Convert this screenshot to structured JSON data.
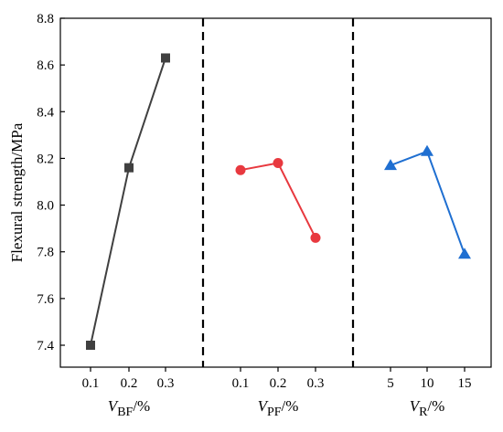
{
  "chart_data": {
    "type": "line",
    "ylabel": "Flexural strength/MPa",
    "ylim": [
      7.35,
      8.8
    ],
    "yticks": [
      7.4,
      7.6,
      7.8,
      8.0,
      8.2,
      8.4,
      8.6,
      8.8
    ],
    "ytick_labels": [
      "7.4",
      "7.6",
      "7.8",
      "8.0",
      "8.2",
      "8.4",
      "8.6",
      "8.8"
    ],
    "grid": false,
    "panels": [
      {
        "xlabel_main": "V",
        "xlabel_sub": "BF",
        "xlabel_unit": "/%",
        "x": [
          "0.1",
          "0.2",
          "0.3"
        ],
        "values": [
          7.4,
          8.16,
          8.63
        ],
        "marker": "square",
        "color": "#404040"
      },
      {
        "xlabel_main": "V",
        "xlabel_sub": "PF",
        "xlabel_unit": "/%",
        "x": [
          "0.1",
          "0.2",
          "0.3"
        ],
        "values": [
          8.15,
          8.18,
          7.86
        ],
        "marker": "circle",
        "color": "#e8393f"
      },
      {
        "xlabel_main": "V",
        "xlabel_sub": "R",
        "xlabel_unit": "/%",
        "x": [
          "5",
          "10",
          "15"
        ],
        "values": [
          8.17,
          8.23,
          7.79
        ],
        "marker": "triangle",
        "color": "#1f6fd1"
      }
    ]
  }
}
